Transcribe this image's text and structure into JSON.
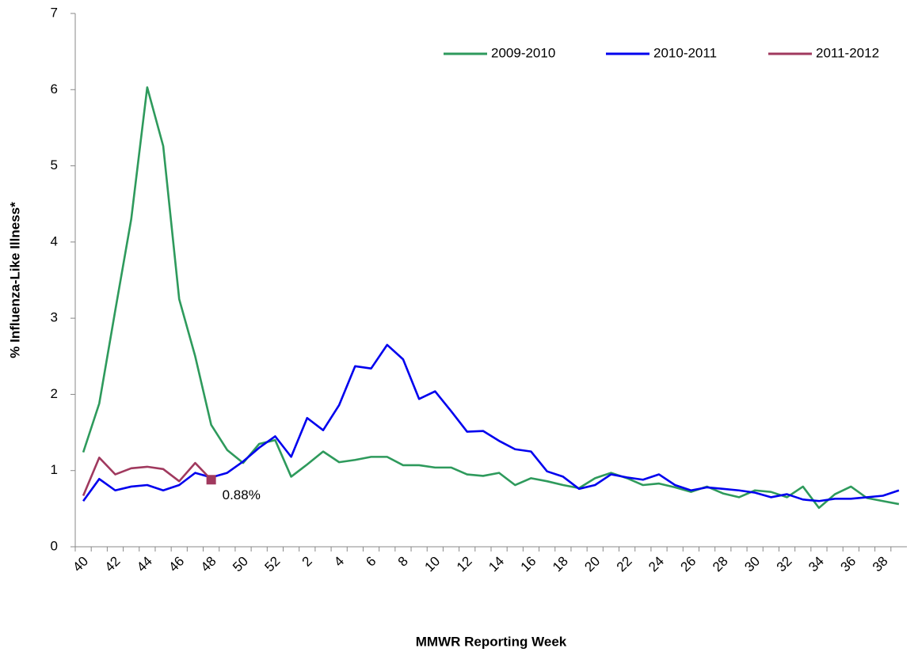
{
  "chart_data": {
    "type": "line",
    "xlabel": "MMWR Reporting Week",
    "ylabel": "% Influenza-Like Illness*",
    "categories": [
      "40",
      null,
      "42",
      null,
      "44",
      null,
      "46",
      null,
      "48",
      null,
      "50",
      null,
      "52",
      null,
      "2",
      null,
      "4",
      null,
      "6",
      null,
      "8",
      null,
      "10",
      null,
      "12",
      null,
      "14",
      null,
      "16",
      null,
      "18",
      null,
      "20",
      null,
      "22",
      null,
      "24",
      null,
      "26",
      null,
      "28",
      null,
      "30",
      null,
      "32",
      null,
      "34",
      null,
      "36",
      null,
      "38",
      null
    ],
    "ylim": [
      0,
      7
    ],
    "yticks": [
      0,
      1,
      2,
      3,
      4,
      5,
      6,
      7
    ],
    "legend": "top-right",
    "series": [
      {
        "name": "2009-2010",
        "color": "#2e9a5c",
        "values": [
          1.24,
          1.88,
          3.1,
          4.3,
          6.03,
          5.26,
          3.25,
          2.5,
          1.6,
          1.27,
          1.1,
          1.35,
          1.4,
          0.92,
          1.08,
          1.25,
          1.11,
          1.14,
          1.18,
          1.18,
          1.07,
          1.07,
          1.04,
          1.04,
          0.95,
          0.93,
          0.97,
          0.81,
          0.9,
          0.86,
          0.81,
          0.77,
          0.9,
          0.97,
          0.9,
          0.81,
          0.83,
          0.78,
          0.72,
          0.79,
          0.7,
          0.65,
          0.74,
          0.72,
          0.65,
          0.79,
          0.51,
          0.69,
          0.79,
          0.64,
          0.6,
          0.56
        ]
      },
      {
        "name": "2010-2011",
        "color": "#0000ee",
        "values": [
          0.6,
          0.89,
          0.74,
          0.79,
          0.81,
          0.74,
          0.81,
          0.97,
          0.91,
          0.97,
          1.12,
          1.3,
          1.45,
          1.18,
          1.69,
          1.53,
          1.86,
          2.37,
          2.34,
          2.65,
          2.46,
          1.94,
          2.04,
          1.78,
          1.51,
          1.52,
          1.39,
          1.28,
          1.25,
          0.99,
          0.92,
          0.76,
          0.81,
          0.95,
          0.91,
          0.88,
          0.95,
          0.81,
          0.74,
          0.78,
          0.76,
          0.74,
          0.71,
          0.65,
          0.69,
          0.62,
          0.6,
          0.63,
          0.63,
          0.65,
          0.67,
          0.74
        ]
      },
      {
        "name": "2011-2012",
        "color": "#a0395e",
        "values": [
          0.67,
          1.17,
          0.95,
          1.03,
          1.05,
          1.02,
          0.86,
          1.1,
          0.88,
          null,
          null,
          null,
          null,
          null,
          null,
          null,
          null,
          null,
          null,
          null,
          null,
          null,
          null,
          null,
          null,
          null,
          null,
          null,
          null,
          null,
          null,
          null,
          null,
          null,
          null,
          null,
          null,
          null,
          null,
          null,
          null,
          null,
          null,
          null,
          null,
          null,
          null,
          null,
          null,
          null,
          null,
          null
        ],
        "value_labels": [
          null,
          null,
          null,
          null,
          null,
          null,
          null,
          null,
          "0.88%",
          null,
          null,
          null,
          null,
          null,
          null,
          null,
          null,
          null,
          null,
          null,
          null,
          null,
          null,
          null,
          null,
          null,
          null,
          null,
          null,
          null,
          null,
          null,
          null,
          null,
          null,
          null,
          null,
          null,
          null,
          null,
          null,
          null,
          null,
          null,
          null,
          null,
          null,
          null,
          null,
          null,
          null,
          null
        ]
      }
    ]
  }
}
